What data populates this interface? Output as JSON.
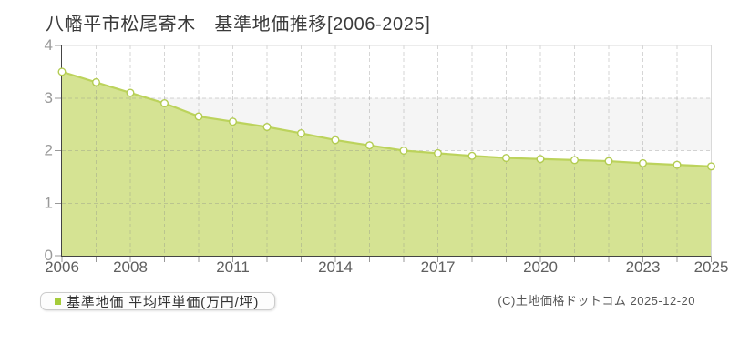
{
  "title": "八幡平市松尾寄木　基準地価推移[2006-2025]",
  "legend": {
    "label": "基準地価 平均坪単価(万円/坪)",
    "marker_color": "#a5cc3a"
  },
  "copyright": "(C)土地価格ドットコム 2025-12-20",
  "chart_data": {
    "type": "area",
    "title": "八幡平市松尾寄木 基準地価推移",
    "series_name": "基準地価 平均坪単価(万円/坪)",
    "x": [
      2006,
      2007,
      2008,
      2009,
      2010,
      2011,
      2012,
      2013,
      2014,
      2015,
      2016,
      2017,
      2018,
      2019,
      2020,
      2021,
      2022,
      2023,
      2024,
      2025
    ],
    "values": [
      3.5,
      3.3,
      3.1,
      2.9,
      2.65,
      2.55,
      2.45,
      2.33,
      2.2,
      2.1,
      2.0,
      1.95,
      1.9,
      1.86,
      1.84,
      1.82,
      1.8,
      1.76,
      1.73,
      1.7
    ],
    "ylim": [
      0,
      4
    ],
    "yticks": [
      0,
      1,
      2,
      3,
      4
    ],
    "xtick_labels": [
      2006,
      2008,
      2011,
      2014,
      2017,
      2020,
      2023,
      2025
    ],
    "grid": "dashed",
    "legend_position": "bottom-left",
    "colors": {
      "area_fill": "#d5e393",
      "line": "#bcd35c",
      "marker_fill": "#ffffff",
      "marker_stroke": "#b3cc52",
      "band": "#f5f5f5",
      "grid": "#8a8a8a",
      "axis": "#444444",
      "tick": "#999999",
      "border": "#d9d9d9",
      "ylabel_color": "#999999",
      "xlabel_color": "#5f5f5f"
    }
  }
}
